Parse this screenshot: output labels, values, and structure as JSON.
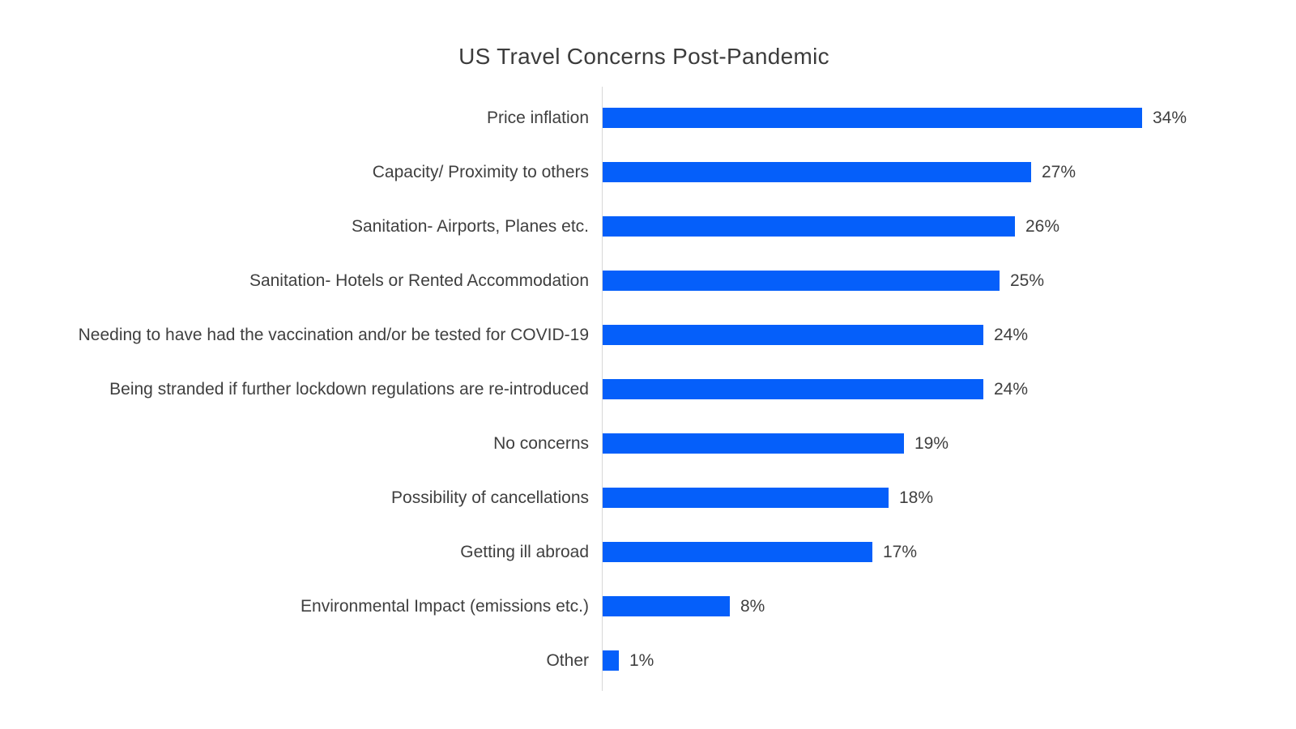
{
  "page": {
    "background": "#ffffff"
  },
  "chart_data": {
    "type": "bar",
    "orientation": "horizontal",
    "title": "US Travel Concerns Post-Pandemic",
    "categories": [
      "Price inflation",
      "Capacity/ Proximity to others",
      "Sanitation- Airports, Planes etc.",
      "Sanitation- Hotels or Rented Accommodation",
      "Needing to have had the vaccination and/or be tested for COVID-19",
      "Being stranded if further lockdown regulations are re-introduced",
      "No concerns",
      "Possibility of cancellations",
      "Getting ill abroad",
      "Environmental Impact (emissions etc.)",
      "Other"
    ],
    "values": [
      34,
      27,
      26,
      25,
      24,
      24,
      19,
      18,
      17,
      8,
      1
    ],
    "value_suffix": "%",
    "xlabel": "",
    "ylabel": "",
    "xlim": [
      0,
      34
    ],
    "grid": false,
    "legend": false,
    "data_labels": "outside-end",
    "colors": {
      "bar": "#055ffa",
      "axis_line": "#d8d8d8",
      "title_text": "#3c3c3c",
      "label_text": "#3f3f3f"
    }
  }
}
